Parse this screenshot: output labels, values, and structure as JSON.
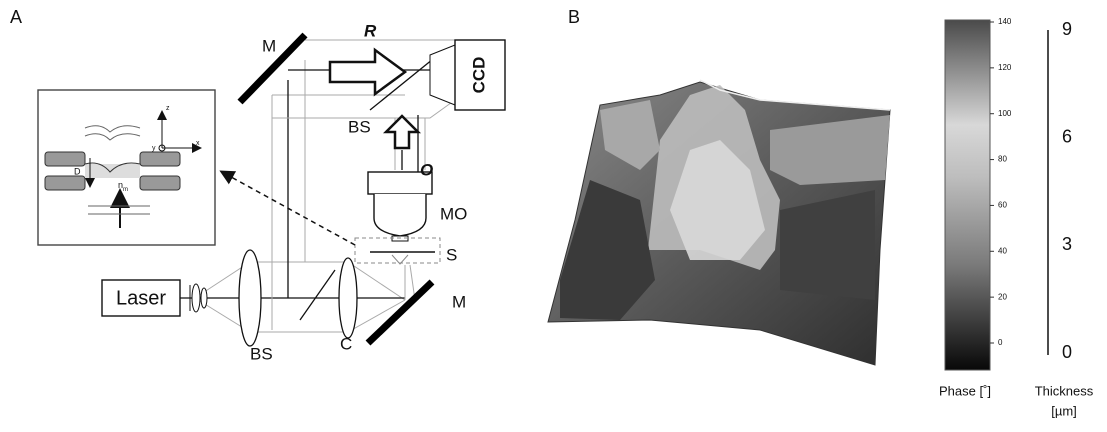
{
  "panel_a": {
    "label": "A",
    "labels": {
      "mirror_top": "M",
      "reference": "R",
      "camera": "CCD",
      "splitter_top": "BS",
      "object": "O",
      "objective": "MO",
      "sample": "S",
      "source": "Laser",
      "splitter_bottom": "BS",
      "condenser": "C",
      "mirror_bottom": "M"
    },
    "inset": {
      "z": "z",
      "y": "y",
      "x": "x",
      "distance": "D",
      "medium": {
        "base": "n",
        "sub": "m"
      }
    }
  },
  "panel_b": {
    "label": "B",
    "phase_scale": {
      "ticks": [
        140,
        120,
        100,
        80,
        60,
        40,
        20,
        0
      ],
      "title": "Phase [˚]"
    },
    "thickness_scale": {
      "ticks": [
        9,
        6,
        3,
        0
      ],
      "title_line1": "Thickness",
      "title_line2": "[µm]"
    }
  }
}
